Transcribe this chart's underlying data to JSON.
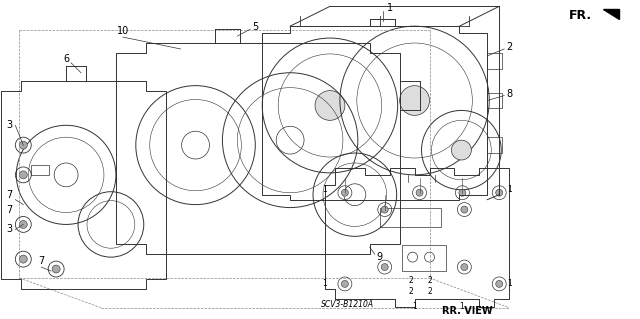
{
  "bg_color": "#ffffff",
  "line_color": "#333333",
  "diagram_code": "SCV3-B1210A",
  "fr_label": "FR.",
  "rr_label": "RR. VIEW",
  "annotation_fontsize": 7,
  "small_fontsize": 5.5
}
